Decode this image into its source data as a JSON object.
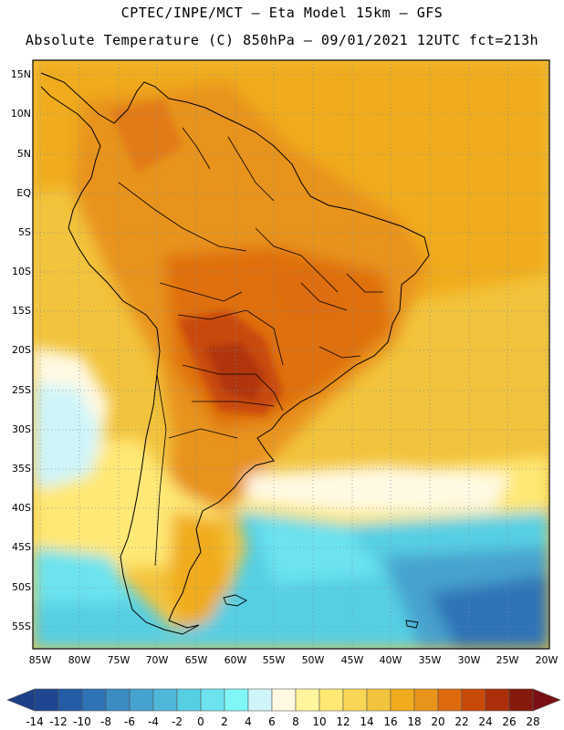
{
  "title": {
    "line1": "CPTEC/INPE/MCT –  Eta Model 15km – GFS",
    "line2": "Absolute Temperature (C) 850hPa – 09/01/2021 12UTC fct=213h"
  },
  "map": {
    "lat_labels": [
      "15N",
      "10N",
      "5N",
      "EQ",
      "5S",
      "10S",
      "15S",
      "20S",
      "25S",
      "30S",
      "35S",
      "40S",
      "45S",
      "50S",
      "55S"
    ],
    "lon_labels": [
      "85W",
      "80W",
      "75W",
      "70W",
      "65W",
      "60W",
      "55W",
      "50W",
      "45W",
      "40W",
      "35W",
      "30W",
      "25W",
      "20W"
    ]
  },
  "colorbar": {
    "labels": [
      "-14",
      "-12",
      "-10",
      "-8",
      "-6",
      "-4",
      "-2",
      "0",
      "2",
      "4",
      "6",
      "8",
      "10",
      "12",
      "14",
      "16",
      "18",
      "20",
      "22",
      "24",
      "26",
      "28"
    ],
    "colors": [
      "#1f4690",
      "#245ca6",
      "#2d73b6",
      "#3a8cc3",
      "#46a2cf",
      "#4fb8da",
      "#57cfe3",
      "#6ce3ee",
      "#7ff7f7",
      "#cff5f9",
      "#fff9e3",
      "#fff59c",
      "#ffe874",
      "#f9d653",
      "#f2c33c",
      "#f0ac1e",
      "#e8931b",
      "#dd6a0d",
      "#c94a08",
      "#aa2f0a",
      "#85190b"
    ],
    "under_color": "#1c3f88",
    "over_color": "#7a0f16"
  }
}
